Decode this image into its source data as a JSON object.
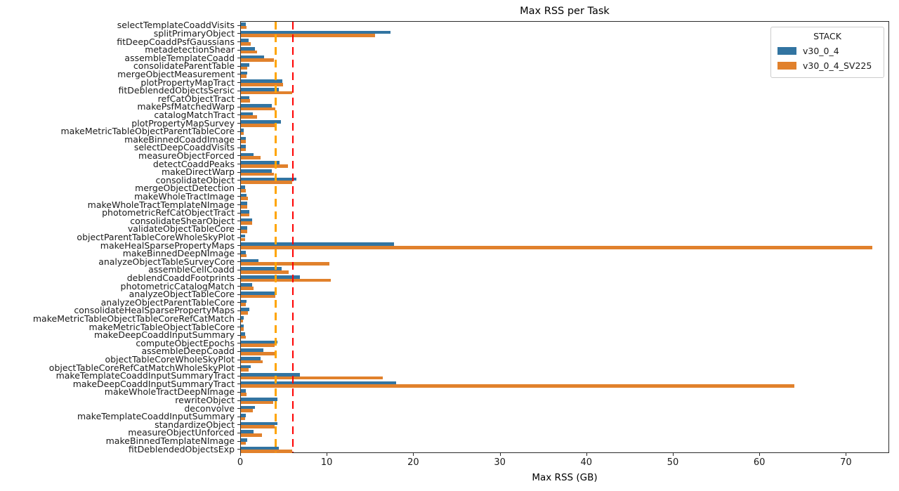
{
  "title": "Max RSS per Task",
  "xlabel": "Max RSS (GB)",
  "legend": {
    "title": "STACK"
  },
  "colors": {
    "series_blue": "#3274a1",
    "series_orange": "#e1812c",
    "vline_orange": "#ffa500",
    "vline_red": "#ff0000"
  },
  "chart_data": {
    "type": "bar",
    "orientation": "horizontal",
    "title": "Max RSS per Task",
    "xlabel": "Max RSS (GB)",
    "ylabel": "",
    "xlim": [
      0,
      75
    ],
    "x_ticks": [
      0,
      10,
      20,
      30,
      40,
      50,
      60,
      70
    ],
    "grid": false,
    "legend_position": "upper right",
    "legend_title": "STACK",
    "vlines": [
      {
        "x": 4,
        "color": "#ffa500",
        "style": "dashed"
      },
      {
        "x": 6,
        "color": "#ff0000",
        "style": "dashed"
      }
    ],
    "categories": [
      "selectTemplateCoaddVisits",
      "splitPrimaryObject",
      "fitDeepCoaddPsfGaussians",
      "metadetectionShear",
      "assembleTemplateCoadd",
      "consolidateParentTable",
      "mergeObjectMeasurement",
      "plotPropertyMapTract",
      "fitDeblendedObjectsSersic",
      "refCatObjectTract",
      "makePsfMatchedWarp",
      "catalogMatchTract",
      "plotPropertyMapSurvey",
      "makeMetricTableObjectParentTableCore",
      "makeBinnedCoaddImage",
      "selectDeepCoaddVisits",
      "measureObjectForced",
      "detectCoaddPeaks",
      "makeDirectWarp",
      "consolidateObject",
      "mergeObjectDetection",
      "makeWholeTractImage",
      "makeWholeTractTemplateNImage",
      "photometricRefCatObjectTract",
      "consolidateShearObject",
      "validateObjectTableCore",
      "objectParentTableCoreWholeSkyPlot",
      "makeHealSparsePropertyMaps",
      "makeBinnedDeepNImage",
      "analyzeObjectTableSurveyCore",
      "assembleCellCoadd",
      "deblendCoaddFootprints",
      "photometricCatalogMatch",
      "analyzeObjectTableCore",
      "analyzeObjectParentTableCore",
      "consolidateHealSparsePropertyMaps",
      "makeMetricTableObjectTableCoreRefCatMatch",
      "makeMetricTableObjectTableCore",
      "makeDeepCoaddInputSummary",
      "computeObjectEpochs",
      "assembleDeepCoadd",
      "objectTableCoreWholeSkyPlot",
      "objectTableCoreRefCatMatchWholeSkyPlot",
      "makeTemplateCoaddInputSummaryTract",
      "makeDeepCoaddInputSummaryTract",
      "makeWholeTractDeepNImage",
      "rewriteObject",
      "deconvolve",
      "makeTemplateCoaddInputSummary",
      "standardizeObject",
      "measureObjectUnforced",
      "makeBinnedTemplateNImage",
      "fitDeblendedObjectsExp"
    ],
    "series": [
      {
        "name": "v30_0_4",
        "color": "#3274a1",
        "values": [
          0.6,
          17.3,
          0.9,
          1.6,
          2.7,
          1.0,
          0.7,
          4.8,
          4.4,
          0.95,
          3.6,
          1.35,
          4.6,
          0.3,
          0.6,
          0.55,
          1.5,
          4.5,
          3.6,
          6.4,
          0.5,
          0.65,
          0.7,
          0.95,
          1.3,
          0.75,
          0.5,
          17.7,
          0.55,
          2.0,
          4.7,
          6.8,
          1.3,
          4.1,
          0.65,
          1.0,
          0.3,
          0.3,
          0.5,
          4.2,
          2.6,
          2.3,
          1.1,
          6.8,
          17.9,
          0.55,
          4.2,
          1.6,
          0.55,
          4.2,
          1.5,
          0.7,
          4.4
        ]
      },
      {
        "name": "v30_0_4_SV225",
        "color": "#e1812c",
        "values": [
          0.65,
          15.5,
          1.1,
          1.9,
          3.8,
          0.75,
          0.65,
          4.9,
          5.9,
          1.05,
          4.0,
          1.9,
          3.9,
          0.3,
          0.6,
          0.6,
          2.25,
          5.4,
          3.85,
          5.9,
          0.55,
          0.8,
          0.7,
          1.0,
          1.3,
          0.75,
          0.5,
          73.0,
          0.65,
          10.2,
          5.5,
          10.4,
          1.5,
          4.0,
          0.6,
          0.85,
          0.28,
          0.3,
          0.55,
          3.9,
          4.0,
          2.5,
          0.9,
          16.4,
          64.0,
          0.65,
          3.7,
          1.4,
          0.45,
          3.9,
          2.4,
          0.6,
          5.9
        ]
      }
    ]
  }
}
